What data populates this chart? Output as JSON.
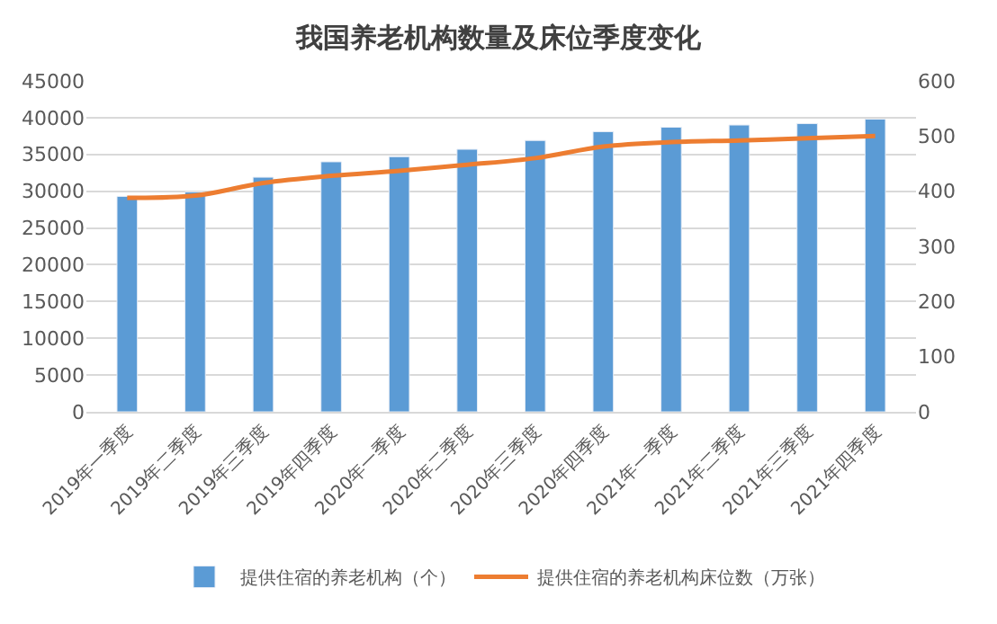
{
  "chart_data": {
    "type": "bar",
    "title": "我国养老机构数量及床位季度变化",
    "categories": [
      "2019年一季度",
      "2019年二季度",
      "2019年三季度",
      "2019年四季度",
      "2020年一季度",
      "2020年二季度",
      "2020年三季度",
      "2020年四季度",
      "2021年一季度",
      "2021年二季度",
      "2021年三季度",
      "2021年四季度"
    ],
    "series": [
      {
        "name": "提供住宿的养老机构（个）",
        "color": "#5b9bd5",
        "values": [
          29300,
          29900,
          31900,
          34000,
          34700,
          35700,
          36900,
          38100,
          38700,
          39000,
          39200,
          39800
        ]
      },
      {
        "name": "提供住宿的养老机构床位数（万张）",
        "type": "line",
        "axis": "y2",
        "color": "#ed7d31",
        "values": [
          388,
          392,
          415,
          428,
          437,
          448,
          460,
          481,
          489,
          492,
          496,
          500
        ]
      }
    ],
    "ylim": [
      0,
      45000
    ],
    "yticks": [
      0,
      5000,
      10000,
      15000,
      20000,
      25000,
      30000,
      35000,
      40000,
      45000
    ],
    "y2lim": [
      0,
      600
    ],
    "y2ticks": [
      0,
      100,
      200,
      300,
      400,
      500,
      600
    ],
    "grid": "y",
    "legend": "bottom",
    "marker": "none",
    "line_style": "solid"
  }
}
